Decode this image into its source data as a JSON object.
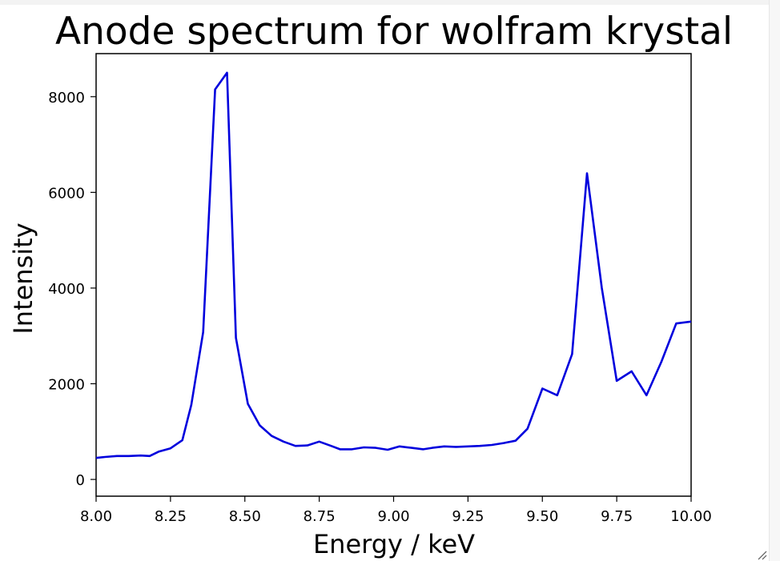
{
  "chart_data": {
    "type": "line",
    "title": "Anode spectrum for wolfram krystal",
    "xlabel": "Energy / keV",
    "ylabel": "Intensity",
    "xlim": [
      8.0,
      10.0
    ],
    "ylim": [
      -350,
      8900
    ],
    "x_ticks": [
      8.0,
      8.25,
      8.5,
      8.75,
      9.0,
      9.25,
      9.5,
      9.75,
      10.0
    ],
    "x_tick_labels": [
      "8.00",
      "8.25",
      "8.50",
      "8.75",
      "9.00",
      "9.25",
      "9.50",
      "9.75",
      "10.00"
    ],
    "y_ticks": [
      0,
      2000,
      4000,
      6000,
      8000
    ],
    "y_tick_labels": [
      "0",
      "2000",
      "4000",
      "6000",
      "8000"
    ],
    "grid": false,
    "series": [
      {
        "color": "#0000dd",
        "x": [
          8.0,
          8.03,
          8.07,
          8.11,
          8.15,
          8.18,
          8.21,
          8.25,
          8.29,
          8.32,
          8.36,
          8.4,
          8.44,
          8.47,
          8.51,
          8.55,
          8.59,
          8.63,
          8.67,
          8.71,
          8.75,
          8.79,
          8.82,
          8.86,
          8.9,
          8.94,
          8.98,
          9.02,
          9.06,
          9.1,
          9.13,
          9.17,
          9.21,
          9.25,
          9.29,
          9.33,
          9.37,
          9.41,
          9.45,
          9.5,
          9.55,
          9.6,
          9.65,
          9.7,
          9.75,
          9.8,
          9.85,
          9.9,
          9.95,
          10.0
        ],
        "y": [
          450,
          470,
          490,
          490,
          500,
          490,
          580,
          650,
          820,
          1560,
          3080,
          8150,
          8500,
          2960,
          1580,
          1130,
          910,
          790,
          700,
          710,
          790,
          700,
          630,
          630,
          670,
          660,
          620,
          690,
          660,
          630,
          660,
          690,
          680,
          690,
          700,
          720,
          760,
          810,
          1060,
          1900,
          1760,
          2620,
          6400,
          4000,
          2060,
          2260,
          1760,
          2460,
          3260,
          3300
        ]
      }
    ]
  }
}
